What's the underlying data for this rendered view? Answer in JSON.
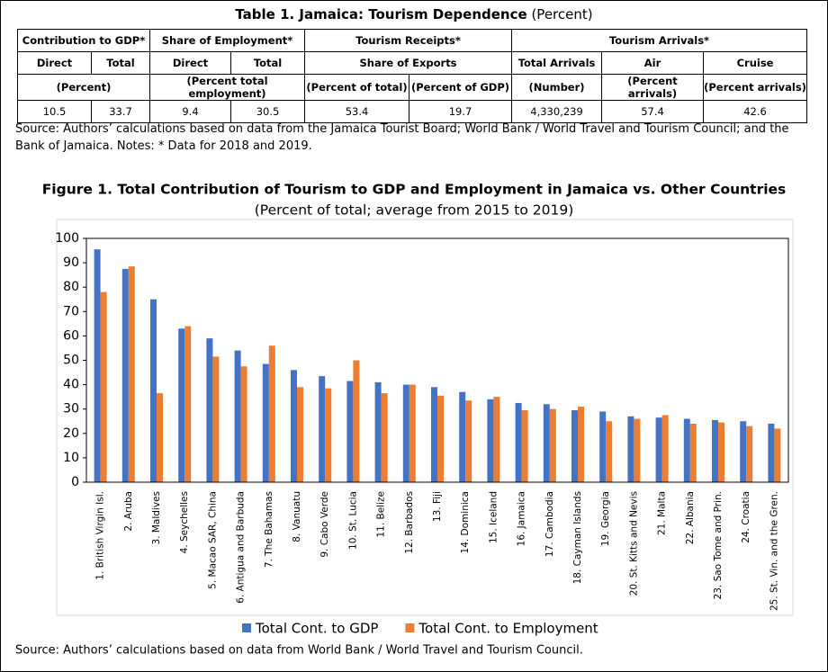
{
  "table": {
    "title": "Table 1. Jamaica: Tourism Dependence",
    "title_note": "(Percent)",
    "header_groups": [
      "Contribution to GDP*",
      "Share of Employment*",
      "Tourism Receipts*",
      "Tourism Arrivals*"
    ],
    "subheaders": [
      "Direct",
      "Total",
      "Direct",
      "Total",
      "Share of Exports",
      "Total Arrivals",
      "Air",
      "Cruise"
    ],
    "units": [
      "(Percent)",
      "(Percent total employment)",
      "(Percent of total)",
      "(Percent of GDP)",
      "(Number)",
      "(Percent arrivals)",
      "(Percent arrivals)"
    ],
    "values": [
      "10.5",
      "33.7",
      "9.4",
      "30.5",
      "53.4",
      "19.7",
      "4,330,239",
      "57.4",
      "42.6"
    ],
    "source": "Source: Authors’ calculations based on data from the Jamaica Tourist Board; World Bank / World Travel and Tourism Council; and the Bank of Jamaica. Notes: * Data for 2018 and 2019."
  },
  "chart_data": {
    "type": "bar",
    "title": "Figure 1. Total Contribution of Tourism to GDP and Employment in Jamaica vs. Other Countries",
    "subtitle": "(Percent of total; average from 2015 to 2019)",
    "categories": [
      "1. British Virgin Isl.",
      "2. Aruba",
      "3. Maldives",
      "4. Seychelles",
      "5. Macao SAR, China",
      "6. Antigua and Barbuda",
      "7. The Bahamas",
      "8. Vanuatu",
      "9. Cabo Verde",
      "10. St. Lucia",
      "11. Belize",
      "12. Barbados",
      "13. Fiji",
      "14. Dominica",
      "15. Iceland",
      "16. Jamaica",
      "17. Cambodia",
      "18. Cayman Islands",
      "19. Georgia",
      "20. St. Kitts and Nevis",
      "21. Malta",
      "22. Albania",
      "23. Sao Tome and Prin.",
      "24. Croatia",
      "25. St. Vin. and the Gren."
    ],
    "series": [
      {
        "name": "Total Cont. to GDP",
        "color": "#4472c4",
        "values": [
          95.5,
          87.5,
          75,
          63,
          59,
          54,
          48.5,
          46,
          43.5,
          41.5,
          41,
          40,
          39,
          37,
          34,
          32.5,
          32,
          29.5,
          29,
          27,
          26.5,
          26,
          25.5,
          25,
          24
        ]
      },
      {
        "name": "Total Cont. to Employment",
        "color": "#ed7d31",
        "values": [
          78,
          88.5,
          36.5,
          64,
          51.5,
          47.5,
          56,
          39,
          38.5,
          50,
          36.5,
          40,
          35.5,
          33.5,
          35,
          29.5,
          30,
          31,
          25,
          26,
          27.5,
          24,
          24.5,
          23,
          22
        ]
      }
    ],
    "ylim": [
      0,
      100
    ],
    "yticks": [
      0,
      10,
      20,
      30,
      40,
      50,
      60,
      70,
      80,
      90,
      100
    ],
    "grid": false,
    "source": "Source: Authors’ calculations based on data from World Bank / World Travel and Tourism Council."
  }
}
